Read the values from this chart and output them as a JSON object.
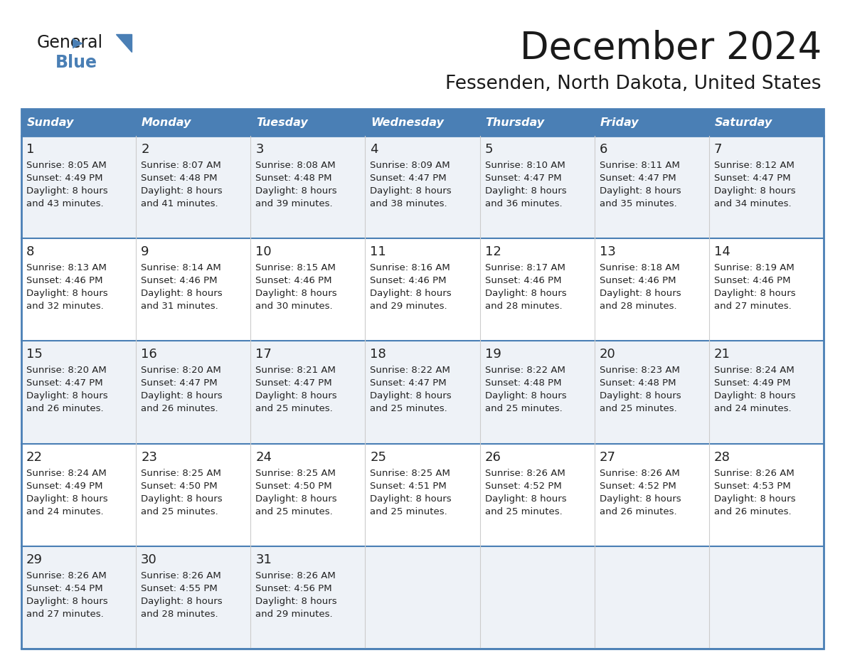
{
  "title": "December 2024",
  "subtitle": "Fessenden, North Dakota, United States",
  "header_color": "#4a7fb5",
  "header_text_color": "#ffffff",
  "row_bg_odd": "#eef2f7",
  "row_bg_even": "#ffffff",
  "border_color": "#4a7fb5",
  "divider_color": "#4a7fb5",
  "text_color": "#222222",
  "day_names": [
    "Sunday",
    "Monday",
    "Tuesday",
    "Wednesday",
    "Thursday",
    "Friday",
    "Saturday"
  ],
  "days": [
    {
      "date": 1,
      "col": 0,
      "row": 0,
      "sunrise": "8:05 AM",
      "sunset": "4:49 PM",
      "daylight": "8 hours",
      "daylight2": "and 43 minutes."
    },
    {
      "date": 2,
      "col": 1,
      "row": 0,
      "sunrise": "8:07 AM",
      "sunset": "4:48 PM",
      "daylight": "8 hours",
      "daylight2": "and 41 minutes."
    },
    {
      "date": 3,
      "col": 2,
      "row": 0,
      "sunrise": "8:08 AM",
      "sunset": "4:48 PM",
      "daylight": "8 hours",
      "daylight2": "and 39 minutes."
    },
    {
      "date": 4,
      "col": 3,
      "row": 0,
      "sunrise": "8:09 AM",
      "sunset": "4:47 PM",
      "daylight": "8 hours",
      "daylight2": "and 38 minutes."
    },
    {
      "date": 5,
      "col": 4,
      "row": 0,
      "sunrise": "8:10 AM",
      "sunset": "4:47 PM",
      "daylight": "8 hours",
      "daylight2": "and 36 minutes."
    },
    {
      "date": 6,
      "col": 5,
      "row": 0,
      "sunrise": "8:11 AM",
      "sunset": "4:47 PM",
      "daylight": "8 hours",
      "daylight2": "and 35 minutes."
    },
    {
      "date": 7,
      "col": 6,
      "row": 0,
      "sunrise": "8:12 AM",
      "sunset": "4:47 PM",
      "daylight": "8 hours",
      "daylight2": "and 34 minutes."
    },
    {
      "date": 8,
      "col": 0,
      "row": 1,
      "sunrise": "8:13 AM",
      "sunset": "4:46 PM",
      "daylight": "8 hours",
      "daylight2": "and 32 minutes."
    },
    {
      "date": 9,
      "col": 1,
      "row": 1,
      "sunrise": "8:14 AM",
      "sunset": "4:46 PM",
      "daylight": "8 hours",
      "daylight2": "and 31 minutes."
    },
    {
      "date": 10,
      "col": 2,
      "row": 1,
      "sunrise": "8:15 AM",
      "sunset": "4:46 PM",
      "daylight": "8 hours",
      "daylight2": "and 30 minutes."
    },
    {
      "date": 11,
      "col": 3,
      "row": 1,
      "sunrise": "8:16 AM",
      "sunset": "4:46 PM",
      "daylight": "8 hours",
      "daylight2": "and 29 minutes."
    },
    {
      "date": 12,
      "col": 4,
      "row": 1,
      "sunrise": "8:17 AM",
      "sunset": "4:46 PM",
      "daylight": "8 hours",
      "daylight2": "and 28 minutes."
    },
    {
      "date": 13,
      "col": 5,
      "row": 1,
      "sunrise": "8:18 AM",
      "sunset": "4:46 PM",
      "daylight": "8 hours",
      "daylight2": "and 28 minutes."
    },
    {
      "date": 14,
      "col": 6,
      "row": 1,
      "sunrise": "8:19 AM",
      "sunset": "4:46 PM",
      "daylight": "8 hours",
      "daylight2": "and 27 minutes."
    },
    {
      "date": 15,
      "col": 0,
      "row": 2,
      "sunrise": "8:20 AM",
      "sunset": "4:47 PM",
      "daylight": "8 hours",
      "daylight2": "and 26 minutes."
    },
    {
      "date": 16,
      "col": 1,
      "row": 2,
      "sunrise": "8:20 AM",
      "sunset": "4:47 PM",
      "daylight": "8 hours",
      "daylight2": "and 26 minutes."
    },
    {
      "date": 17,
      "col": 2,
      "row": 2,
      "sunrise": "8:21 AM",
      "sunset": "4:47 PM",
      "daylight": "8 hours",
      "daylight2": "and 25 minutes."
    },
    {
      "date": 18,
      "col": 3,
      "row": 2,
      "sunrise": "8:22 AM",
      "sunset": "4:47 PM",
      "daylight": "8 hours",
      "daylight2": "and 25 minutes."
    },
    {
      "date": 19,
      "col": 4,
      "row": 2,
      "sunrise": "8:22 AM",
      "sunset": "4:48 PM",
      "daylight": "8 hours",
      "daylight2": "and 25 minutes."
    },
    {
      "date": 20,
      "col": 5,
      "row": 2,
      "sunrise": "8:23 AM",
      "sunset": "4:48 PM",
      "daylight": "8 hours",
      "daylight2": "and 25 minutes."
    },
    {
      "date": 21,
      "col": 6,
      "row": 2,
      "sunrise": "8:24 AM",
      "sunset": "4:49 PM",
      "daylight": "8 hours",
      "daylight2": "and 24 minutes."
    },
    {
      "date": 22,
      "col": 0,
      "row": 3,
      "sunrise": "8:24 AM",
      "sunset": "4:49 PM",
      "daylight": "8 hours",
      "daylight2": "and 24 minutes."
    },
    {
      "date": 23,
      "col": 1,
      "row": 3,
      "sunrise": "8:25 AM",
      "sunset": "4:50 PM",
      "daylight": "8 hours",
      "daylight2": "and 25 minutes."
    },
    {
      "date": 24,
      "col": 2,
      "row": 3,
      "sunrise": "8:25 AM",
      "sunset": "4:50 PM",
      "daylight": "8 hours",
      "daylight2": "and 25 minutes."
    },
    {
      "date": 25,
      "col": 3,
      "row": 3,
      "sunrise": "8:25 AM",
      "sunset": "4:51 PM",
      "daylight": "8 hours",
      "daylight2": "and 25 minutes."
    },
    {
      "date": 26,
      "col": 4,
      "row": 3,
      "sunrise": "8:26 AM",
      "sunset": "4:52 PM",
      "daylight": "8 hours",
      "daylight2": "and 25 minutes."
    },
    {
      "date": 27,
      "col": 5,
      "row": 3,
      "sunrise": "8:26 AM",
      "sunset": "4:52 PM",
      "daylight": "8 hours",
      "daylight2": "and 26 minutes."
    },
    {
      "date": 28,
      "col": 6,
      "row": 3,
      "sunrise": "8:26 AM",
      "sunset": "4:53 PM",
      "daylight": "8 hours",
      "daylight2": "and 26 minutes."
    },
    {
      "date": 29,
      "col": 0,
      "row": 4,
      "sunrise": "8:26 AM",
      "sunset": "4:54 PM",
      "daylight": "8 hours",
      "daylight2": "and 27 minutes."
    },
    {
      "date": 30,
      "col": 1,
      "row": 4,
      "sunrise": "8:26 AM",
      "sunset": "4:55 PM",
      "daylight": "8 hours",
      "daylight2": "and 28 minutes."
    },
    {
      "date": 31,
      "col": 2,
      "row": 4,
      "sunrise": "8:26 AM",
      "sunset": "4:56 PM",
      "daylight": "8 hours",
      "daylight2": "and 29 minutes."
    }
  ]
}
